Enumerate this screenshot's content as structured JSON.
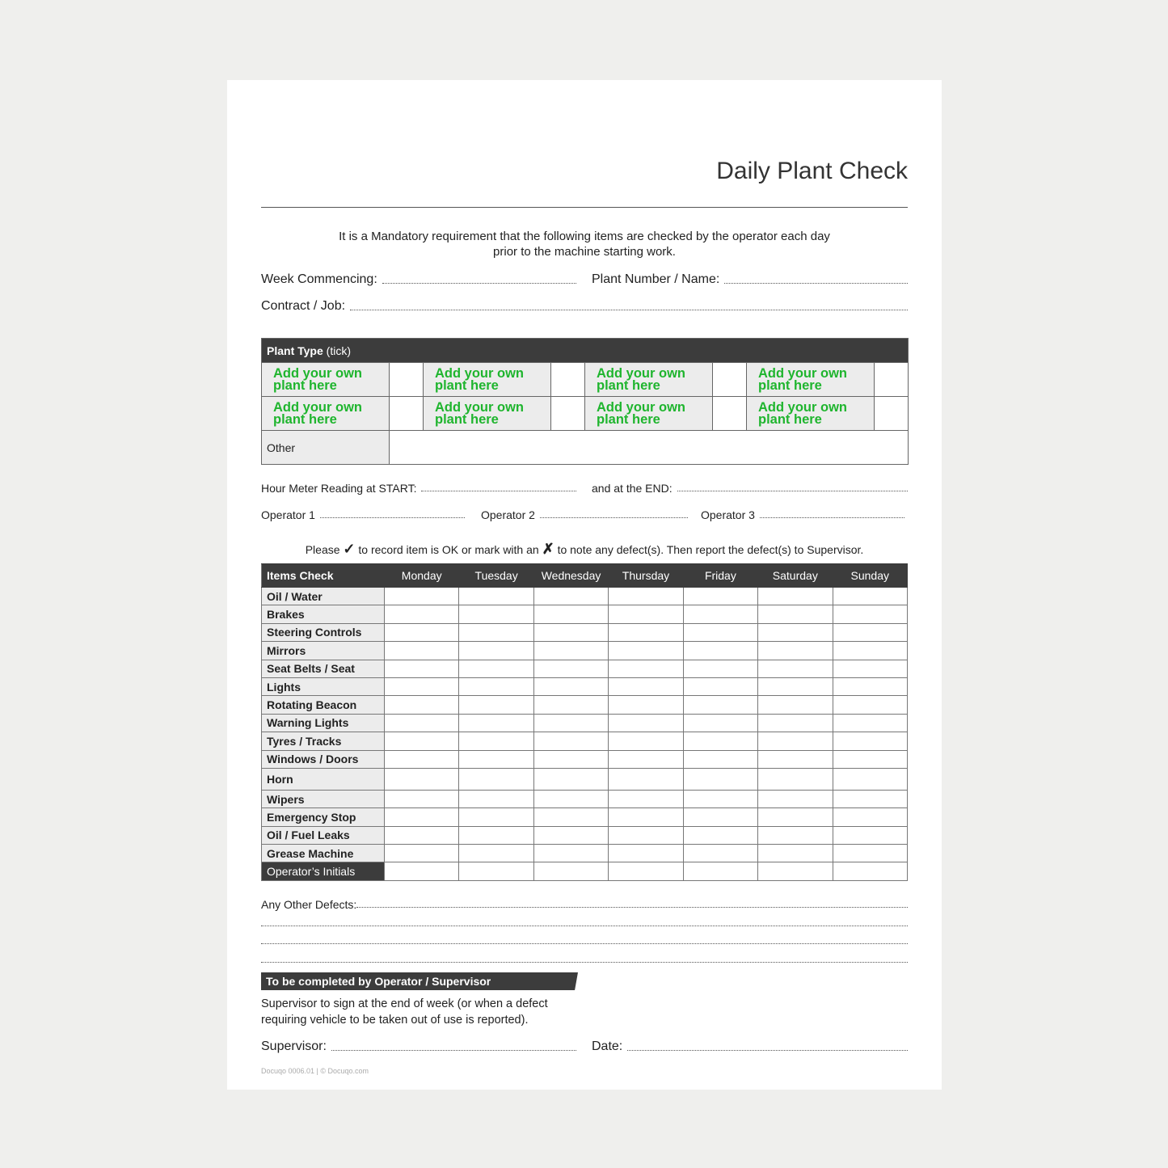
{
  "title": "Daily Plant Check",
  "intro": "It is a Mandatory requirement that the following items are checked by the operator each day prior to the machine starting work.",
  "fields": {
    "week": "Week Commencing:",
    "plant_number": "Plant Number / Name:",
    "contract": "Contract / Job:",
    "hour_start": "Hour Meter Reading at START:",
    "hour_end": "and at the END:",
    "op1": "Operator 1",
    "op2": "Operator 2",
    "op3": "Operator 3"
  },
  "plant_type": {
    "header": "Plant Type",
    "header_suffix": "(tick)",
    "placeholder": "Add your own plant here",
    "other": "Other",
    "accent": "#1fb52e"
  },
  "instruction": {
    "pre": "Please",
    "tick": "✓",
    "mid": "to record item is OK or mark with an",
    "cross": "✗",
    "post": "to note any defect(s). Then report the defect(s) to Supervisor."
  },
  "items_table": {
    "header": "Items Check",
    "days": [
      "Monday",
      "Tuesday",
      "Wednesday",
      "Thursday",
      "Friday",
      "Saturday",
      "Sunday"
    ],
    "items": [
      "Oil /  Water",
      "Brakes",
      "Steering Controls",
      "Mirrors",
      "Seat Belts / Seat",
      "Lights",
      "Rotating Beacon",
      "Warning Lights",
      "Tyres / Tracks",
      "Windows / Doors",
      "Horn",
      "Wipers",
      "Emergency Stop",
      "Oil / Fuel Leaks",
      "Grease Machine",
      "Operator’s Initials"
    ]
  },
  "defects": "Any Other Defects:",
  "supervisor_section": {
    "banner": "To be completed by Operator / Supervisor",
    "note": "Supervisor to sign at the end of week (or when a defect requiring vehicle to be taken out of use is reported).",
    "supervisor": "Supervisor:",
    "date": "Date:"
  },
  "footer": "Docuqo 0006.01 | © Docuqo.com"
}
